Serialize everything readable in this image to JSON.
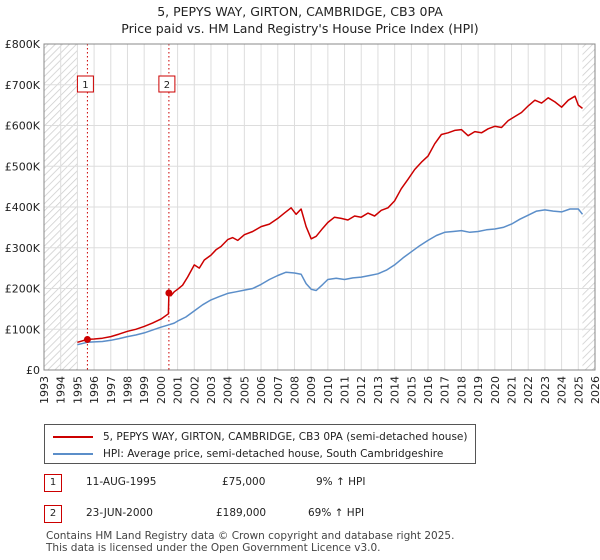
{
  "title_line1": "5, PEPYS WAY, GIRTON, CAMBRIDGE, CB3 0PA",
  "title_line2": "Price paid vs. HM Land Registry's House Price Index (HPI)",
  "legend": {
    "property_label": "5, PEPYS WAY, GIRTON, CAMBRIDGE, CB3 0PA (semi-detached house)",
    "hpi_label": "HPI: Average price, semi-detached house, South Cambridgeshire"
  },
  "transactions": [
    {
      "num": "1",
      "date": "11-AUG-1995",
      "price": "£75,000",
      "hpi": "9% ↑ HPI"
    },
    {
      "num": "2",
      "date": "23-JUN-2000",
      "price": "£189,000",
      "hpi": "69% ↑ HPI"
    }
  ],
  "footer_line1": "Contains HM Land Registry data © Crown copyright and database right 2025.",
  "footer_line2": "This data is licensed under the Open Government Licence v3.0.",
  "colors": {
    "property": "#cc0000",
    "hpi": "#5b8ec9",
    "grid": "#dddddd",
    "hatch": "#cccccc",
    "marker_box": "#cc0000"
  },
  "chart_data": {
    "type": "line",
    "xlim": [
      1993,
      2026
    ],
    "ylim": [
      0,
      800000
    ],
    "y_ticks": [
      0,
      100000,
      200000,
      300000,
      400000,
      500000,
      600000,
      700000,
      800000
    ],
    "y_tick_labels": [
      "£0",
      "£100K",
      "£200K",
      "£300K",
      "£400K",
      "£500K",
      "£600K",
      "£700K",
      "£800K"
    ],
    "x_ticks": [
      1993,
      1994,
      1995,
      1996,
      1997,
      1998,
      1999,
      2000,
      2001,
      2002,
      2003,
      2004,
      2005,
      2006,
      2007,
      2008,
      2009,
      2010,
      2011,
      2012,
      2013,
      2014,
      2015,
      2016,
      2017,
      2018,
      2019,
      2020,
      2021,
      2022,
      2023,
      2024,
      2025,
      2026
    ],
    "x_tick_labels": [
      "1993",
      "1994",
      "1995",
      "1996",
      "1997",
      "1998",
      "1999",
      "2000",
      "2001",
      "2002",
      "2003",
      "2004",
      "2005",
      "2006",
      "2007",
      "2008",
      "2009",
      "2010",
      "2011",
      "2012",
      "2013",
      "2014",
      "2015",
      "2016",
      "2017",
      "2018",
      "2019",
      "2020",
      "2021",
      "2022",
      "2023",
      "2024",
      "2025",
      "2026"
    ],
    "data_start": 1995.0,
    "data_end": 2025.25,
    "series": [
      {
        "name": "5, PEPYS WAY, GIRTON, CAMBRIDGE, CB3 0PA (semi-detached house)",
        "x": [
          1995.0,
          1995.6,
          1996.0,
          1996.5,
          1997.0,
          1997.5,
          1998.0,
          1998.5,
          1999.0,
          1999.5,
          2000.0,
          2000.45,
          2000.48,
          2000.6,
          2000.8,
          2001.0,
          2001.3,
          2001.6,
          2002.0,
          2002.3,
          2002.6,
          2003.0,
          2003.3,
          2003.6,
          2004.0,
          2004.3,
          2004.6,
          2005.0,
          2005.5,
          2006.0,
          2006.5,
          2007.0,
          2007.4,
          2007.8,
          2008.1,
          2008.4,
          2008.7,
          2009.0,
          2009.3,
          2009.7,
          2010.0,
          2010.4,
          2010.8,
          2011.2,
          2011.6,
          2012.0,
          2012.4,
          2012.8,
          2013.2,
          2013.6,
          2014.0,
          2014.4,
          2014.8,
          2015.2,
          2015.6,
          2016.0,
          2016.4,
          2016.8,
          2017.2,
          2017.6,
          2018.0,
          2018.4,
          2018.8,
          2019.2,
          2019.6,
          2020.0,
          2020.4,
          2020.8,
          2021.2,
          2021.6,
          2022.0,
          2022.4,
          2022.8,
          2023.2,
          2023.6,
          2024.0,
          2024.4,
          2024.8,
          2025.0,
          2025.25
        ],
        "values": [
          68000,
          75000,
          76000,
          78000,
          82000,
          88000,
          95000,
          100000,
          107000,
          115000,
          125000,
          138000,
          189000,
          182000,
          192000,
          198000,
          208000,
          228000,
          258000,
          250000,
          270000,
          282000,
          295000,
          303000,
          320000,
          325000,
          318000,
          332000,
          340000,
          352000,
          358000,
          372000,
          385000,
          398000,
          382000,
          395000,
          352000,
          322000,
          328000,
          348000,
          362000,
          375000,
          372000,
          368000,
          378000,
          375000,
          385000,
          378000,
          392000,
          398000,
          415000,
          445000,
          468000,
          492000,
          510000,
          525000,
          555000,
          578000,
          582000,
          588000,
          590000,
          575000,
          585000,
          582000,
          592000,
          598000,
          595000,
          612000,
          622000,
          632000,
          648000,
          662000,
          655000,
          668000,
          658000,
          645000,
          662000,
          672000,
          650000,
          642000
        ],
        "color": "#cc0000"
      },
      {
        "name": "HPI: Average price, semi-detached house, South Cambridgeshire",
        "x": [
          1995.0,
          1995.6,
          1996.0,
          1996.5,
          1997.0,
          1997.5,
          1998.0,
          1998.5,
          1999.0,
          1999.5,
          2000.0,
          2000.48,
          2000.8,
          2001.0,
          2001.5,
          2002.0,
          2002.5,
          2003.0,
          2003.5,
          2004.0,
          2004.5,
          2005.0,
          2005.5,
          2006.0,
          2006.5,
          2007.0,
          2007.5,
          2008.0,
          2008.4,
          2008.7,
          2009.0,
          2009.3,
          2009.7,
          2010.0,
          2010.5,
          2011.0,
          2011.5,
          2012.0,
          2012.5,
          2013.0,
          2013.5,
          2014.0,
          2014.5,
          2015.0,
          2015.5,
          2016.0,
          2016.5,
          2017.0,
          2017.5,
          2018.0,
          2018.5,
          2019.0,
          2019.5,
          2020.0,
          2020.5,
          2021.0,
          2021.5,
          2022.0,
          2022.5,
          2023.0,
          2023.5,
          2024.0,
          2024.5,
          2025.0,
          2025.25
        ],
        "values": [
          62000,
          68000,
          69000,
          70000,
          73000,
          77000,
          82000,
          86000,
          91000,
          98000,
          105000,
          111000,
          115000,
          120000,
          130000,
          145000,
          160000,
          172000,
          180000,
          188000,
          192000,
          196000,
          200000,
          210000,
          222000,
          232000,
          240000,
          238000,
          235000,
          212000,
          198000,
          195000,
          210000,
          222000,
          225000,
          222000,
          226000,
          228000,
          232000,
          236000,
          245000,
          258000,
          275000,
          290000,
          305000,
          318000,
          330000,
          338000,
          340000,
          342000,
          338000,
          340000,
          344000,
          346000,
          350000,
          358000,
          370000,
          380000,
          390000,
          393000,
          390000,
          388000,
          395000,
          395000,
          382000
        ],
        "color": "#5b8ec9"
      }
    ],
    "annotations": [
      {
        "label": "1",
        "x": 1995.6,
        "value": 75000
      },
      {
        "label": "2",
        "x": 2000.48,
        "value": 189000
      }
    ]
  }
}
